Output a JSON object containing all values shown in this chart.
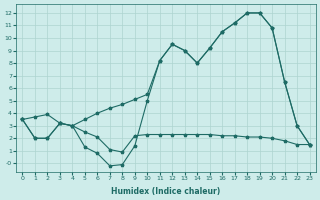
{
  "xlabel": "Humidex (Indice chaleur)",
  "bg_color": "#ceecea",
  "grid_color": "#aed4d0",
  "line_color": "#1e6b65",
  "xlim": [
    -0.5,
    23.5
  ],
  "ylim": [
    -0.7,
    12.7
  ],
  "xticks": [
    0,
    1,
    2,
    3,
    4,
    5,
    6,
    7,
    8,
    9,
    10,
    11,
    12,
    13,
    14,
    15,
    16,
    17,
    18,
    19,
    20,
    21,
    22,
    23
  ],
  "yticks": [
    0,
    1,
    2,
    3,
    4,
    5,
    6,
    7,
    8,
    9,
    10,
    11,
    12
  ],
  "ytick_labels": [
    "-0",
    "1",
    "2",
    "3",
    "4",
    "5",
    "6",
    "7",
    "8",
    "9",
    "10",
    "11",
    "12"
  ],
  "line1_x": [
    0,
    1,
    2,
    3,
    4,
    5,
    6,
    7,
    8,
    9,
    10,
    11,
    12,
    13,
    14,
    15,
    16,
    17,
    18,
    19,
    20,
    21,
    22,
    23
  ],
  "line1_y": [
    3.5,
    2.0,
    2.0,
    3.2,
    3.0,
    2.5,
    2.1,
    1.1,
    0.9,
    2.2,
    2.3,
    2.3,
    2.3,
    2.3,
    2.3,
    2.3,
    2.2,
    2.2,
    2.1,
    2.1,
    2.0,
    1.8,
    1.5,
    1.5
  ],
  "line2_x": [
    0,
    1,
    2,
    3,
    4,
    5,
    6,
    7,
    8,
    9,
    10,
    11,
    12,
    13,
    14,
    15,
    16,
    17,
    18,
    19,
    20,
    21,
    22,
    23
  ],
  "line2_y": [
    3.5,
    2.0,
    2.0,
    3.2,
    3.0,
    1.3,
    0.8,
    -0.2,
    -0.1,
    1.4,
    5.0,
    8.2,
    9.5,
    9.0,
    8.0,
    9.2,
    10.5,
    11.2,
    12.0,
    12.0,
    10.8,
    6.5,
    3.0,
    1.5
  ],
  "line3_x": [
    0,
    1,
    2,
    3,
    4,
    5,
    6,
    7,
    8,
    9,
    10,
    11,
    12,
    13,
    14,
    15,
    16,
    17,
    18,
    19,
    20,
    21,
    22,
    23
  ],
  "line3_y": [
    3.5,
    3.7,
    3.9,
    3.2,
    3.0,
    3.5,
    4.0,
    4.4,
    4.7,
    5.1,
    5.5,
    8.2,
    9.5,
    9.0,
    8.0,
    9.2,
    10.5,
    11.2,
    12.0,
    12.0,
    10.8,
    6.5,
    3.0,
    1.5
  ]
}
